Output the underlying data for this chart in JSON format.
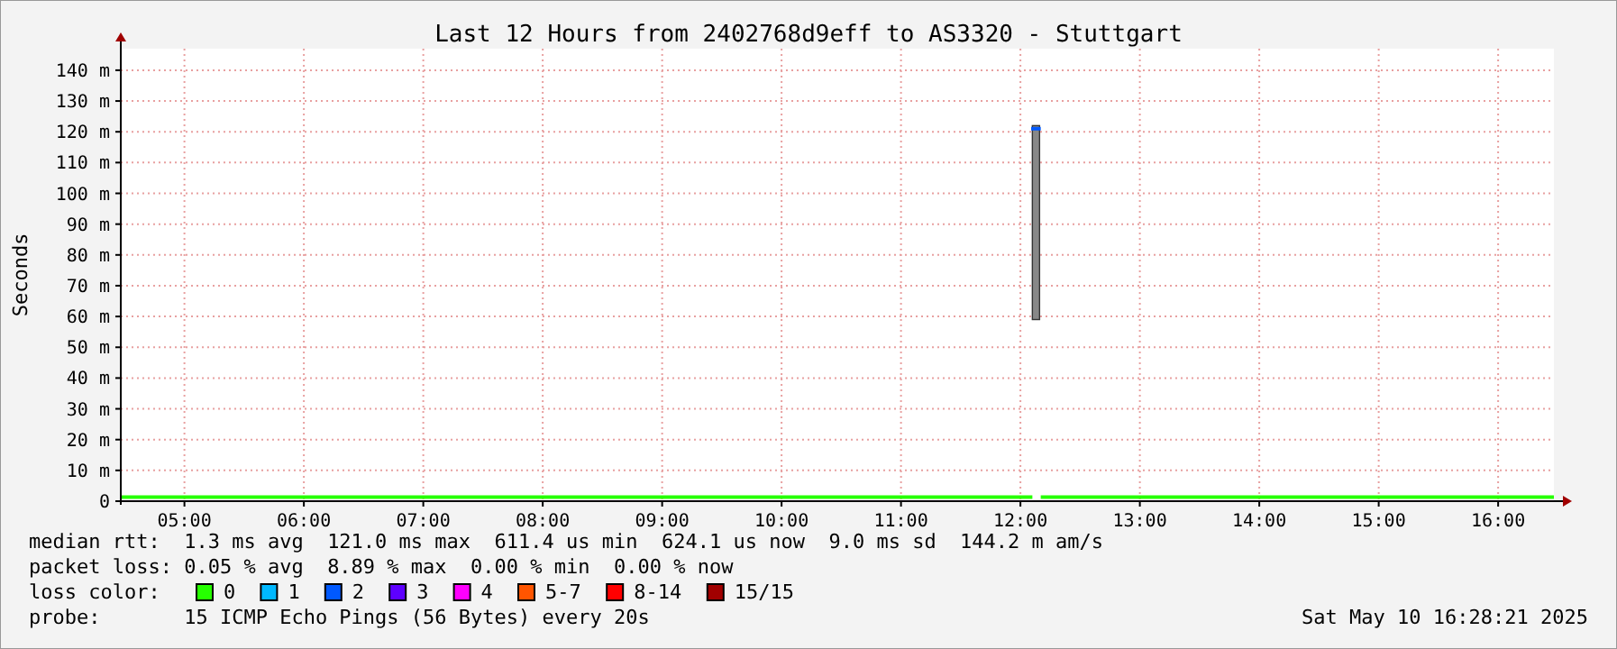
{
  "chart_data": {
    "type": "line",
    "title": "Last 12 Hours from 2402768d9eff to AS3320 - Stuttgart",
    "ylabel": "Seconds",
    "xlim": [
      4.467,
      16.467
    ],
    "ylim": [
      0,
      147
    ],
    "xticks": [
      {
        "value": 5,
        "label": "05:00"
      },
      {
        "value": 6,
        "label": "06:00"
      },
      {
        "value": 7,
        "label": "07:00"
      },
      {
        "value": 8,
        "label": "08:00"
      },
      {
        "value": 9,
        "label": "09:00"
      },
      {
        "value": 10,
        "label": "10:00"
      },
      {
        "value": 11,
        "label": "11:00"
      },
      {
        "value": 12,
        "label": "12:00"
      },
      {
        "value": 13,
        "label": "13:00"
      },
      {
        "value": 14,
        "label": "14:00"
      },
      {
        "value": 15,
        "label": "15:00"
      },
      {
        "value": 16,
        "label": "16:00"
      }
    ],
    "yticks": [
      0,
      {
        "value": 10,
        "label": "10 m"
      },
      {
        "value": 20,
        "label": "20 m"
      },
      {
        "value": 30,
        "label": "30 m"
      },
      {
        "value": 40,
        "label": "40 m"
      },
      {
        "value": 50,
        "label": "50 m"
      },
      {
        "value": 60,
        "label": "60 m"
      },
      {
        "value": 70,
        "label": "70 m"
      },
      {
        "value": 80,
        "label": "80 m"
      },
      {
        "value": 90,
        "label": "90 m"
      },
      {
        "value": 100,
        "label": "100 m"
      },
      {
        "value": 110,
        "label": "110 m"
      },
      {
        "value": 120,
        "label": "120 m"
      },
      {
        "value": 130,
        "label": "130 m"
      },
      {
        "value": 140,
        "label": "140 m"
      }
    ],
    "grid": true,
    "legend": "bottom",
    "legend_title": "loss color:",
    "series": [
      {
        "type": "bar",
        "x": [
          12.13
        ],
        "base": [
          59
        ],
        "values": [
          63
        ],
        "color": "#888888"
      },
      {
        "name": "0",
        "color": "#26ff00",
        "x": [
          4.467,
          12.1,
          12.13,
          12.17,
          16.467
        ],
        "values": [
          1.3,
          1.3,
          null,
          1.3,
          1.3
        ]
      },
      {
        "name": "1",
        "color": "#00b8ff"
      },
      {
        "name": "2",
        "color": "#0059ff",
        "x": [
          12.09,
          12.17
        ],
        "values": [
          121,
          121
        ]
      },
      {
        "name": "3",
        "color": "#5e00ff"
      },
      {
        "name": "4",
        "color": "#ff00ff"
      },
      {
        "name": "5-7",
        "color": "#ff5500"
      },
      {
        "name": "8-14",
        "color": "#ff0000"
      },
      {
        "name": "15/15",
        "color": "#a10000"
      }
    ],
    "annotations": [
      "median rtt:  1.3 ms avg  121.0 ms max  611.4 us min  624.1 us now  9.0 ms sd  144.2 m am/s",
      "packet loss: 0.05 % avg  8.89 % max  0.00 % min  0.00 % now",
      "probe:       15 ICMP Echo Pings (56 Bytes) every 20s",
      "Sat May 10 16:28:21 2025"
    ]
  }
}
